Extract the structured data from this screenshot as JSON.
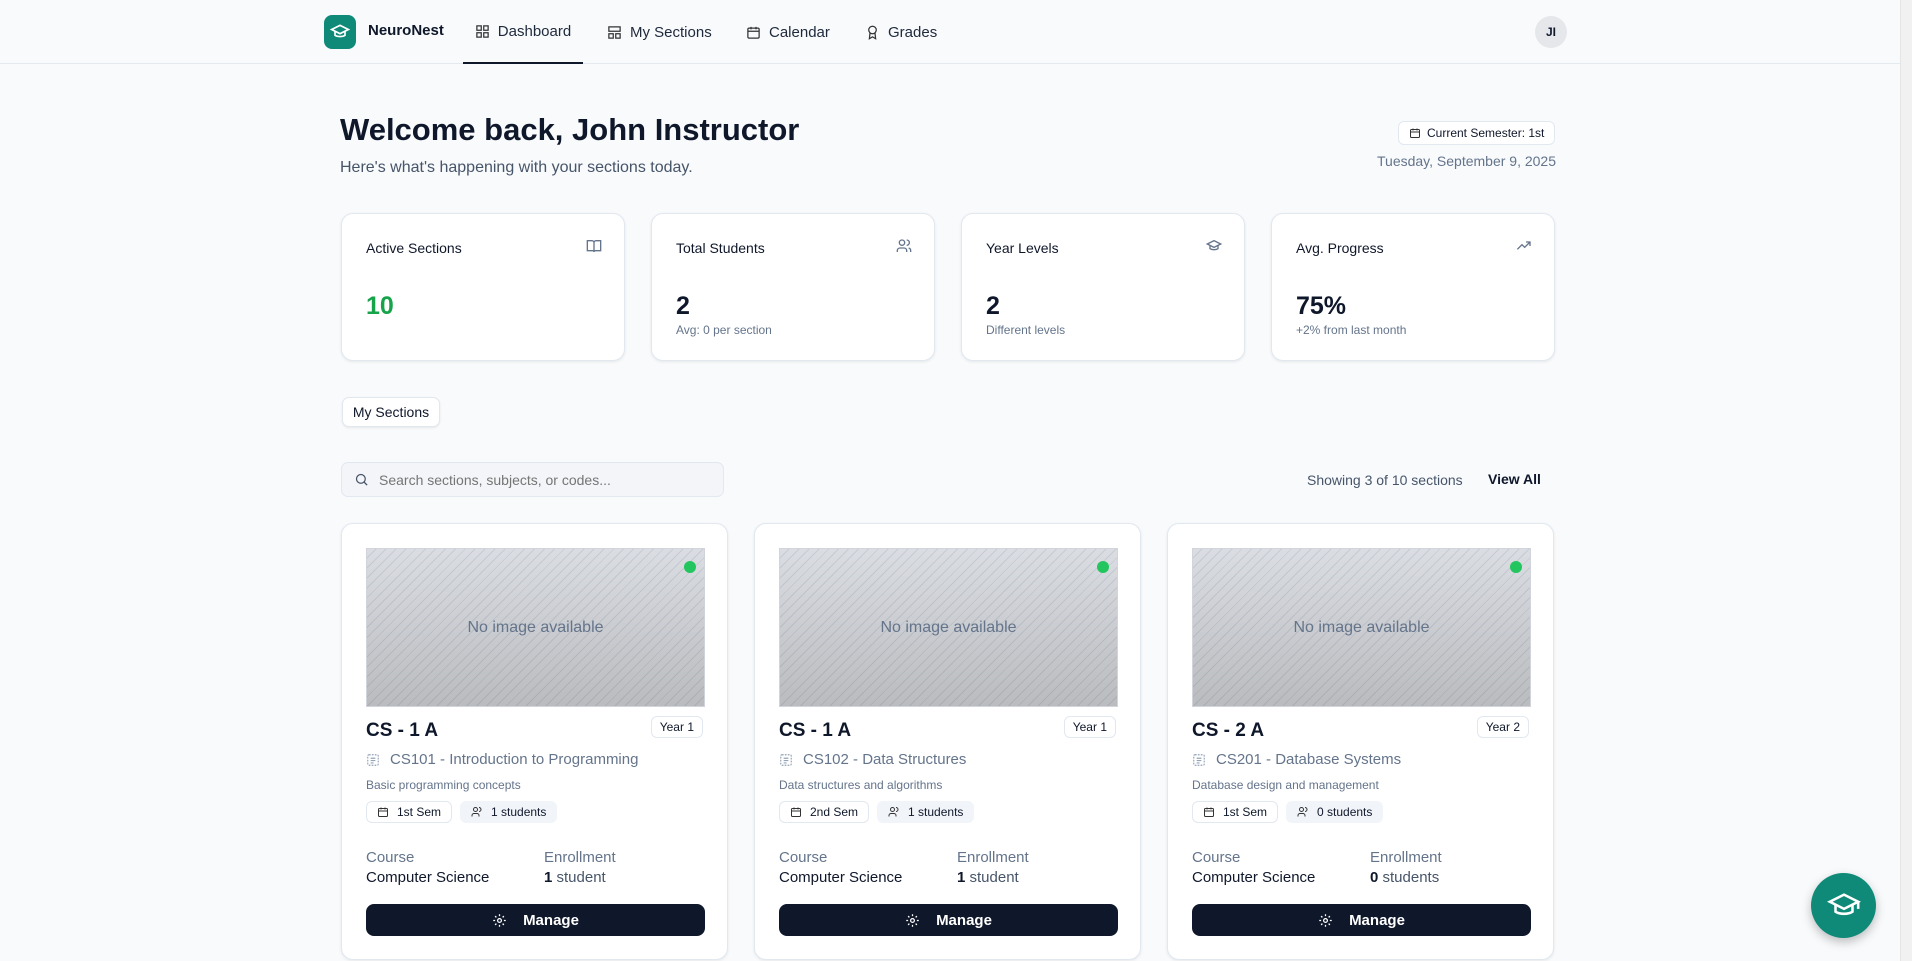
{
  "app": {
    "brand": "NeuroNest",
    "avatar_initials": "JI",
    "brand_color": "#0f8a78"
  },
  "nav": [
    {
      "label": "Dashboard",
      "icon": "grid-icon",
      "active": true
    },
    {
      "label": "My Sections",
      "icon": "layout-icon"
    },
    {
      "label": "Calendar",
      "icon": "calendar-icon"
    },
    {
      "label": "Grades",
      "icon": "award-icon"
    }
  ],
  "header": {
    "title": "Welcome back, John Instructor",
    "subtitle": "Here's what's happening with your sections today.",
    "semester": "Current Semester: 1st",
    "date": "Tuesday, September 9, 2025"
  },
  "stats": [
    {
      "title": "Active Sections",
      "value": "10",
      "sub": "",
      "icon": "book-open-icon",
      "color": "#16a34a"
    },
    {
      "title": "Total Students",
      "value": "2",
      "sub": "Avg: 0 per section",
      "icon": "users-icon"
    },
    {
      "title": "Year Levels",
      "value": "2",
      "sub": "Different levels",
      "icon": "graduation-cap-icon"
    },
    {
      "title": "Avg. Progress",
      "value": "75%",
      "sub": "+2% from last month",
      "icon": "trending-up-icon"
    }
  ],
  "tab": "My Sections",
  "search": {
    "placeholder": "Search sections, subjects, or codes...",
    "value": ""
  },
  "showing": "Showing 3 of 10 sections",
  "view_all": "View All",
  "sections": [
    {
      "image_text": "No image available",
      "title": "CS - 1 A",
      "year": "Year 1",
      "subject": "CS101 - Introduction to Programming",
      "desc": "Basic programming concepts",
      "sem": "1st Sem",
      "students": "1 students",
      "course_label": "Course",
      "course": "Computer Science",
      "enroll_label": "Enrollment",
      "enroll_num": "1",
      "enroll_unit": "student",
      "button": "Manage"
    },
    {
      "image_text": "No image available",
      "title": "CS - 1 A",
      "year": "Year 1",
      "subject": "CS102 - Data Structures",
      "desc": "Data structures and algorithms",
      "sem": "2nd Sem",
      "students": "1 students",
      "course_label": "Course",
      "course": "Computer Science",
      "enroll_label": "Enrollment",
      "enroll_num": "1",
      "enroll_unit": "student",
      "button": "Manage"
    },
    {
      "image_text": "No image available",
      "title": "CS - 2 A",
      "year": "Year 2",
      "subject": "CS201 - Database Systems",
      "desc": "Database design and management",
      "sem": "1st Sem",
      "students": "0 students",
      "course_label": "Course",
      "course": "Computer Science",
      "enroll_label": "Enrollment",
      "enroll_num": "0",
      "enroll_unit": "students",
      "button": "Manage"
    }
  ]
}
